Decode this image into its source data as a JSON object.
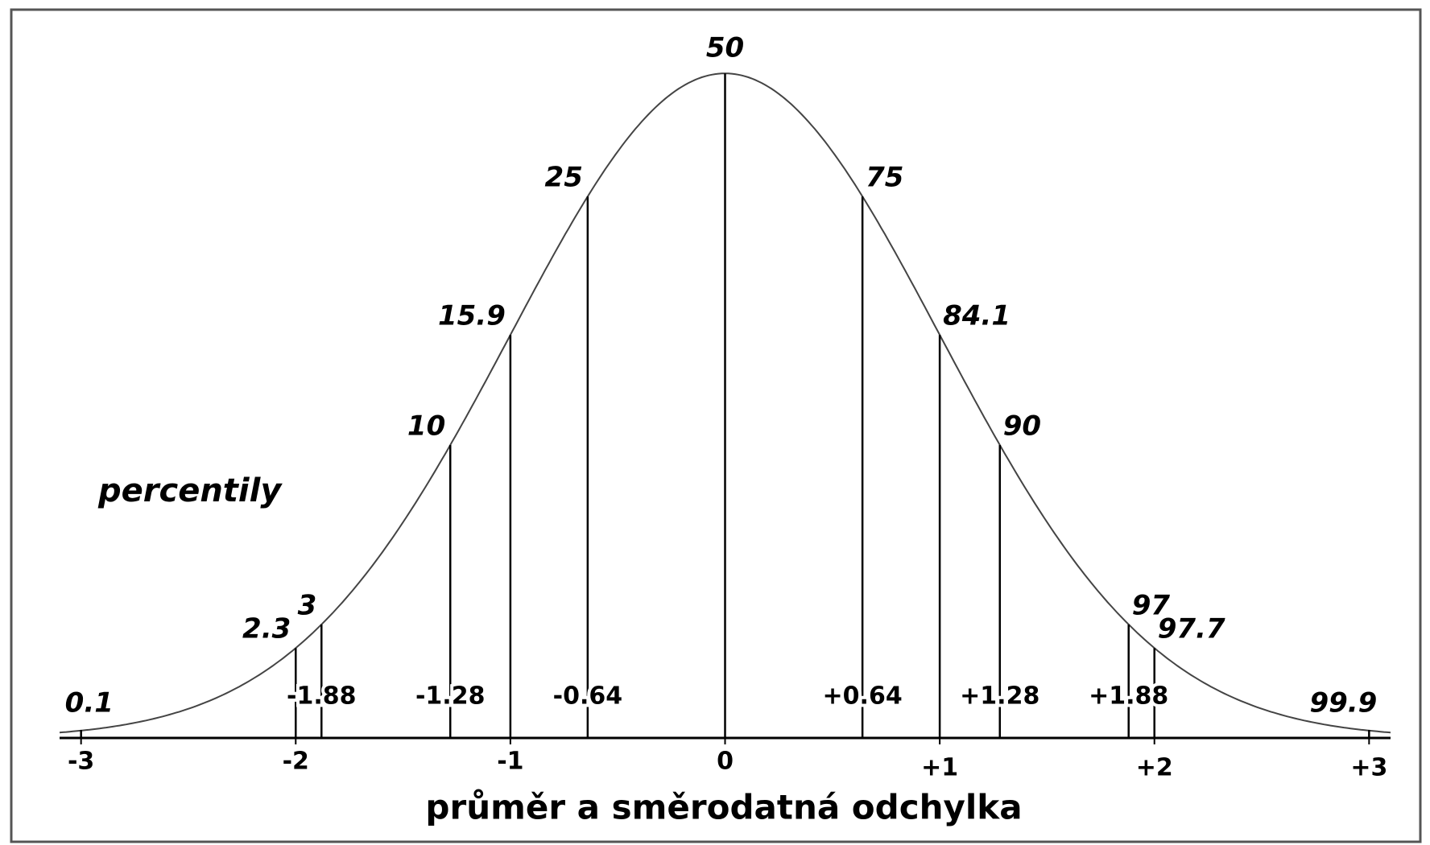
{
  "chart_data": {
    "type": "bell",
    "annotation": "percentily",
    "xlabel": "průměr a směrodatná odchylka",
    "xlim": [
      -3.1,
      3.1
    ],
    "ylim": [
      0,
      0.4
    ],
    "xticks": [
      -3,
      -2,
      -1,
      0,
      {
        "value": 1,
        "label": "+1"
      },
      {
        "value": 2,
        "label": "+2"
      },
      {
        "value": 3,
        "label": "+3"
      }
    ],
    "x": [
      -3,
      -2,
      -1.88,
      -1.28,
      -1,
      -0.64,
      0,
      0.64,
      1,
      1.28,
      1.88,
      2,
      3
    ],
    "values": [
      0.1,
      2.3,
      3,
      10,
      15.9,
      25,
      50,
      75,
      84.1,
      90,
      97,
      97.7,
      99.9
    ],
    "z_marks": [
      -1.88,
      -1.28,
      -0.64,
      {
        "value": 0.64,
        "label": "+0.64"
      },
      {
        "value": 1.28,
        "label": "+1.28"
      },
      {
        "value": 1.88,
        "label": "+1.88"
      }
    ],
    "color": "#000000"
  }
}
